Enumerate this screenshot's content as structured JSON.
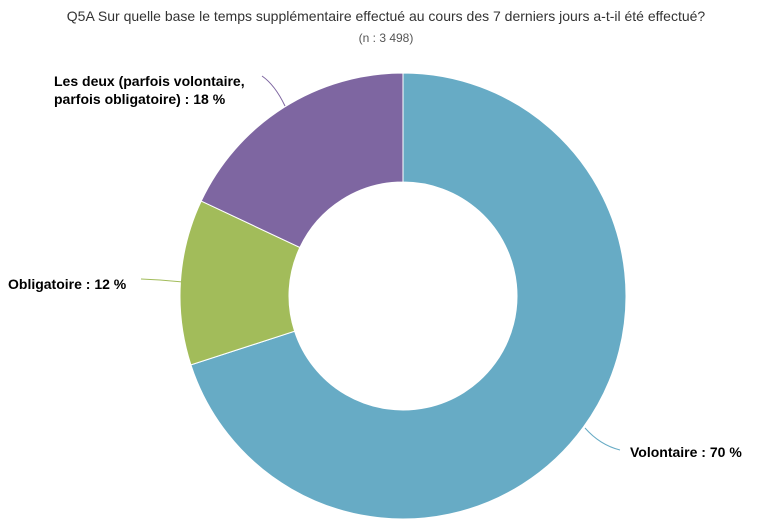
{
  "chart_data": {
    "type": "pie",
    "donut": true,
    "title": "Q5A Sur quelle base le temps supplémentaire effectué au cours des 7 derniers jours a-t-il été effectué?",
    "subtitle": "(n : 3 498)",
    "slices": [
      {
        "name": "Volontaire",
        "value": 70,
        "label": "Volontaire : 70 %",
        "color": "#67abc5"
      },
      {
        "name": "Obligatoire",
        "value": 12,
        "label": "Obligatoire : 12 %",
        "color": "#a2bc5a"
      },
      {
        "name": "Les deux (parfois volontaire, parfois obligatoire)",
        "value": 18,
        "label_line1": "Les deux (parfois volontaire,",
        "label_line2": "parfois obligatoire) : 18 %",
        "color": "#7e66a1"
      }
    ]
  }
}
